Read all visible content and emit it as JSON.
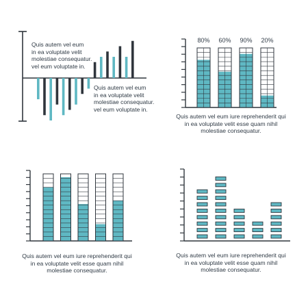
{
  "colors": {
    "teal": "#5fb8c3",
    "dark": "#2f353c",
    "axis": "#2f353c",
    "outline": "#2f353c",
    "text": "#2f3a45"
  },
  "panels": {
    "p1": {
      "caption_left": [
        "Quis autem vel eum",
        "in ea voluptate velit",
        "molestiae consequatur.",
        "vel eum  voluptate in."
      ],
      "caption_right": [
        "Quis autem vel eum",
        "in ea voluptate velit",
        "molestiae consequatur.",
        "vel eum  voluptate in."
      ]
    },
    "p2": {
      "caption": [
        "Quis autem vel eum iure reprehenderit qui",
        "in ea voluptate velit esse quam nihil",
        "molestiae consequatur."
      ]
    },
    "p3": {
      "caption": [
        "Quis autem vel eum iure reprehenderit qui",
        "in ea voluptate velit esse quam nihil",
        "molestiae consequatur."
      ]
    },
    "p4": {
      "caption": [
        "Quis autem vel eum iure reprehenderit qui",
        "in ea voluptate velit esse quam nihil",
        "molestiae consequatur."
      ]
    }
  },
  "chart_data": [
    {
      "type": "bar",
      "series": [
        {
          "values": [
            -4,
            -7,
            -8,
            -5,
            -7,
            -6,
            -5,
            -3,
            -2,
            3,
            4,
            5,
            4,
            6,
            4,
            7
          ]
        }
      ],
      "colors": [
        "teal",
        "dark",
        "teal",
        "dark",
        "teal",
        "dark",
        "teal",
        "dark",
        "teal",
        "dark",
        "teal",
        "dark",
        "teal",
        "dark",
        "teal",
        "dark"
      ],
      "ylim": [
        -8,
        8
      ],
      "yticks": 7
    },
    {
      "type": "bar",
      "categories": [
        "80%",
        "60%",
        "90%",
        "20%"
      ],
      "values": [
        80,
        60,
        90,
        20
      ],
      "ylim": [
        0,
        100
      ],
      "segments": 13,
      "yticks": 10
    },
    {
      "type": "bar",
      "values": [
        80,
        95,
        55,
        25,
        60
      ],
      "ylim": [
        0,
        100
      ],
      "segments": 15,
      "yticks": 11
    },
    {
      "type": "bar",
      "values": [
        8,
        10,
        5,
        3,
        6
      ],
      "ylim": [
        0,
        10
      ],
      "yticks": 10
    }
  ]
}
